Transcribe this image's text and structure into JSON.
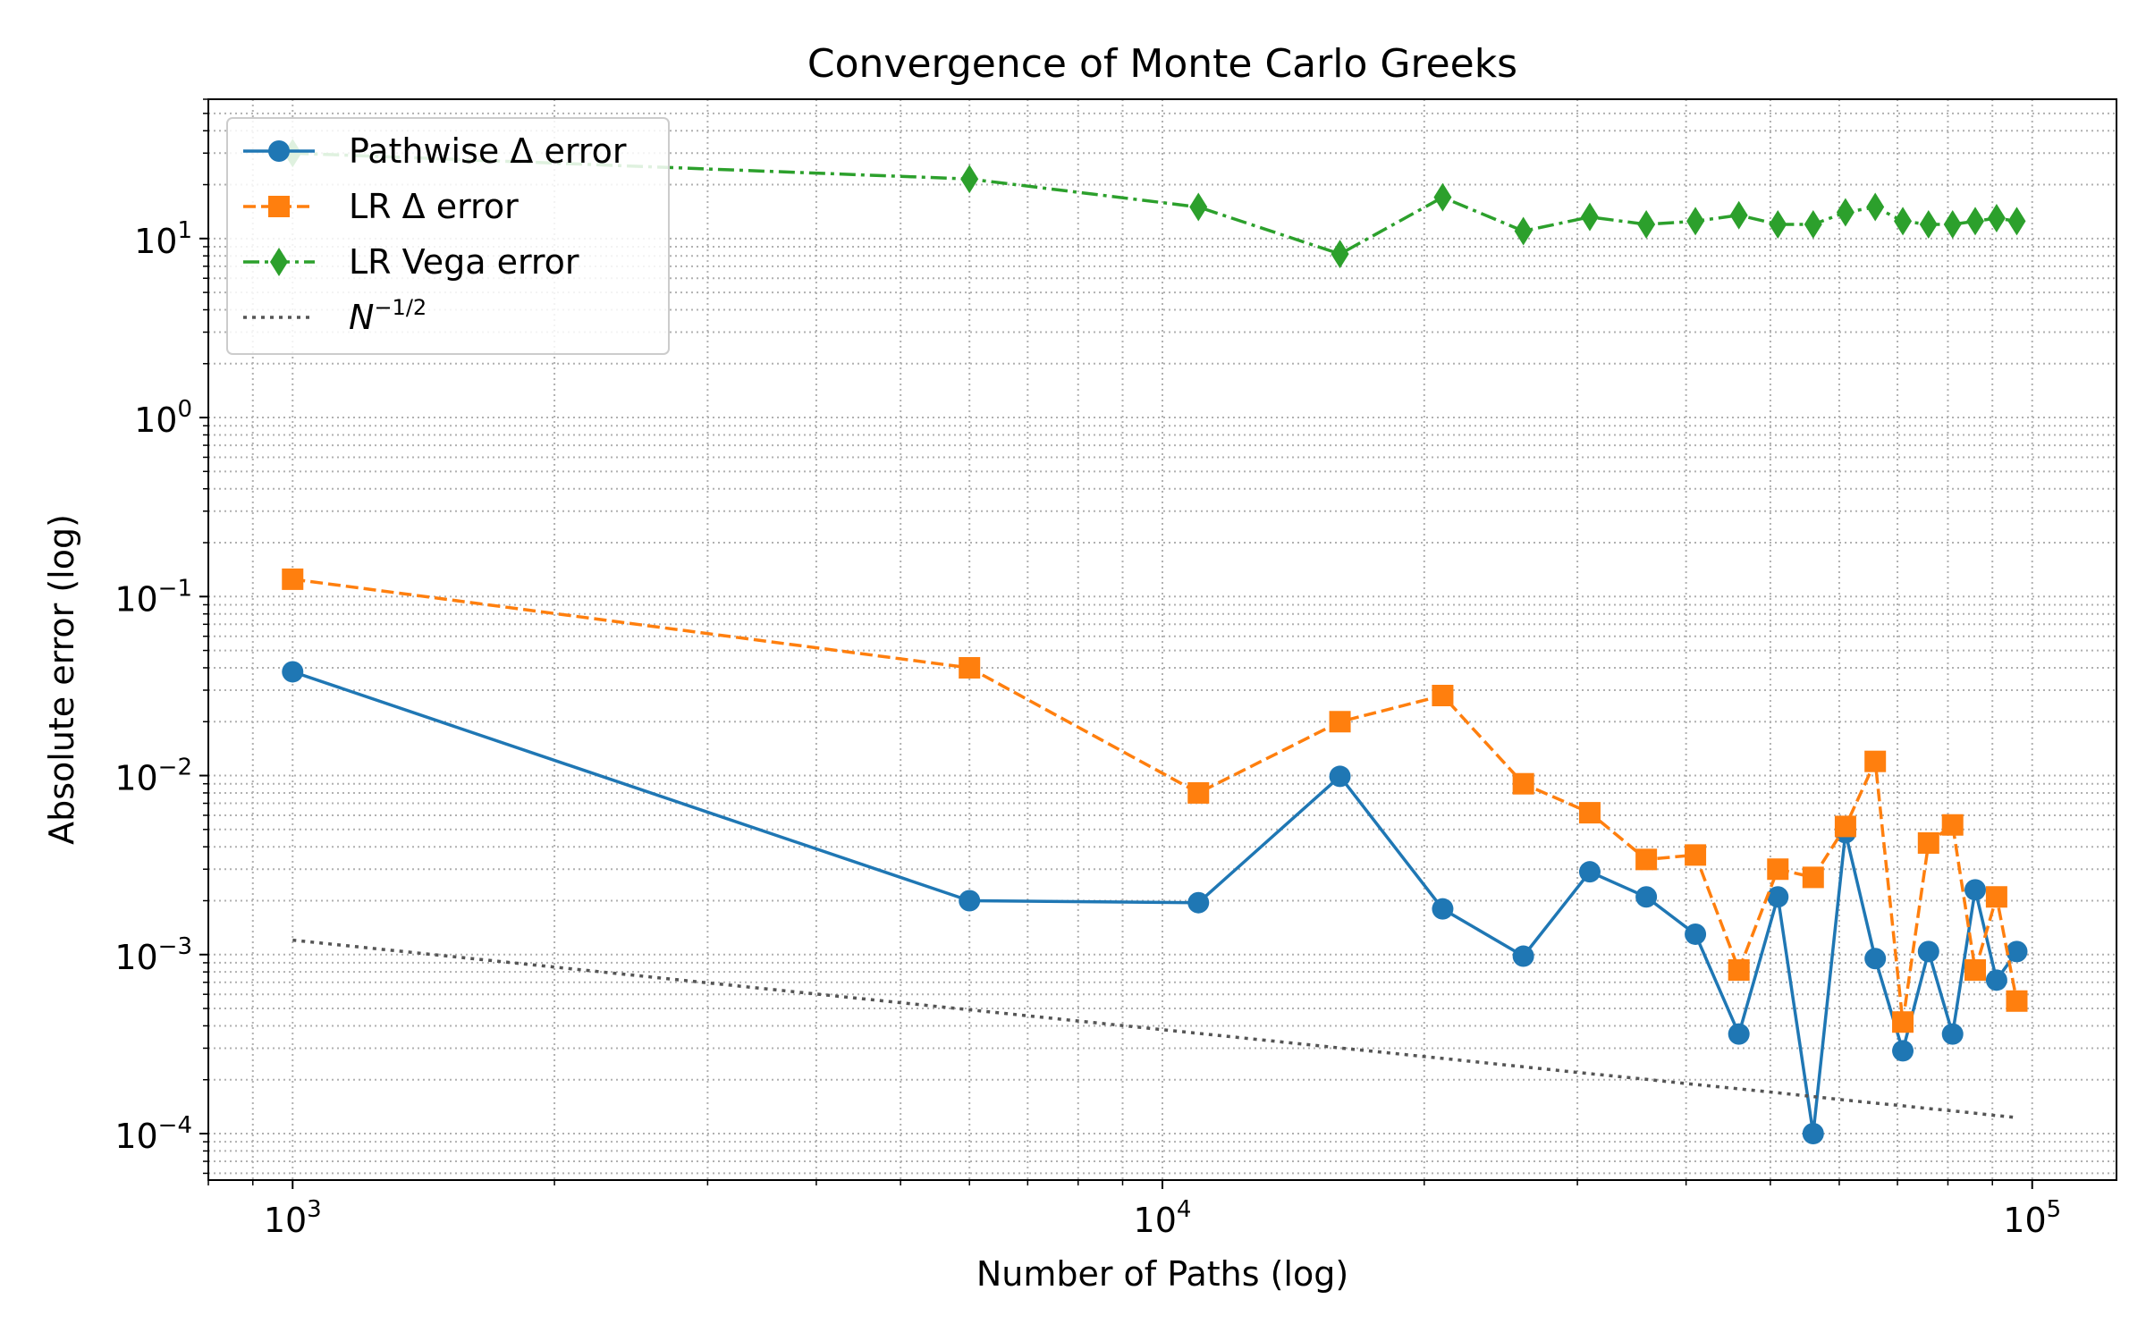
{
  "chart_data": {
    "type": "line",
    "title": "Convergence of Monte Carlo Greeks",
    "xlabel": "Number of Paths (log)",
    "ylabel": "Absolute error (log)",
    "xscale": "log",
    "yscale": "log",
    "xlim": [
      800,
      125000
    ],
    "ylim": [
      5.5e-05,
      60
    ],
    "grid": "on (major and minor, dotted)",
    "legend_position": "top-left",
    "x_ticks": [
      {
        "value": 1000,
        "base": "10",
        "exp": "3"
      },
      {
        "value": 10000,
        "base": "10",
        "exp": "4"
      },
      {
        "value": 100000,
        "base": "10",
        "exp": "5"
      }
    ],
    "y_ticks": [
      {
        "value": 0.0001,
        "base": "10",
        "exp": "−4"
      },
      {
        "value": 0.001,
        "base": "10",
        "exp": "−3"
      },
      {
        "value": 0.01,
        "base": "10",
        "exp": "−2"
      },
      {
        "value": 0.1,
        "base": "10",
        "exp": "−1"
      },
      {
        "value": 1,
        "base": "10",
        "exp": "0"
      },
      {
        "value": 10,
        "base": "10",
        "exp": "1"
      }
    ],
    "x": [
      1000,
      6000,
      11000,
      16000,
      21000,
      26000,
      31000,
      36000,
      41000,
      46000,
      51000,
      56000,
      61000,
      66000,
      71000,
      76000,
      81000,
      86000,
      91000,
      96000
    ],
    "series": [
      {
        "name": "Pathwise Δ error",
        "color": "#1f77b4",
        "line_style": "solid",
        "marker": "circle",
        "values": [
          0.038,
          0.002,
          0.00195,
          0.0099,
          0.0018,
          0.00098,
          0.0029,
          0.0021,
          0.0013,
          0.00036,
          0.0021,
          0.0001,
          0.0048,
          0.00095,
          0.00029,
          0.00104,
          0.00036,
          0.0023,
          0.00072,
          0.00104
        ]
      },
      {
        "name": "LR Δ error",
        "color": "#ff7f0e",
        "line_style": "dashed",
        "marker": "square",
        "values": [
          0.125,
          0.04,
          0.008,
          0.02,
          0.028,
          0.009,
          0.0062,
          0.0034,
          0.0036,
          0.00082,
          0.003,
          0.0027,
          0.0052,
          0.012,
          0.00042,
          0.0042,
          0.0053,
          0.00082,
          0.0021,
          0.00055
        ]
      },
      {
        "name": "LR Vega error",
        "color": "#2ca02c",
        "line_style": "dashdot",
        "marker": "thin_diamond",
        "values": [
          30,
          21.5,
          15,
          8.2,
          17,
          11,
          13.2,
          12,
          12.5,
          13.5,
          12,
          12,
          14,
          15,
          12.5,
          12,
          12,
          12.5,
          13,
          12.5
        ]
      },
      {
        "name": "N^{-1/2}",
        "legend_base": "N",
        "legend_exp": "−1/2",
        "color": "#555555",
        "line_style": "dotted",
        "marker": "none",
        "values": [
          0.001204,
          0.000492,
          0.000363,
          0.000301,
          0.000263,
          0.000236,
          0.000216,
          0.000201,
          0.000188,
          0.000178,
          0.000169,
          0.000161,
          0.000154,
          0.000148,
          0.000143,
          0.000138,
          0.000134,
          0.00013,
          0.000126,
          0.000123
        ]
      }
    ]
  }
}
